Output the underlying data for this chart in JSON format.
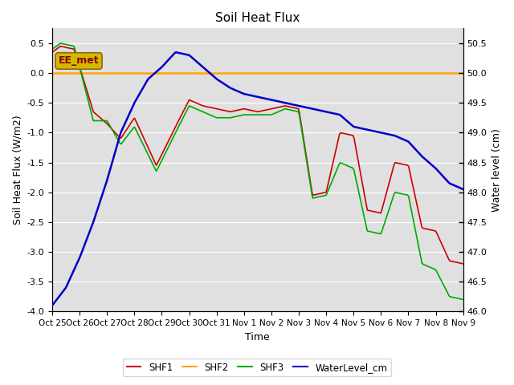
{
  "title": "Soil Heat Flux",
  "ylabel_left": "Soil Heat Flux (W/m2)",
  "ylabel_right": "Water level (cm)",
  "xlabel": "Time",
  "ylim_left": [
    -4.0,
    0.75
  ],
  "ylim_right": [
    46.0,
    50.75
  ],
  "background_color": "#ffffff",
  "plot_bg_color": "#e0e0e0",
  "annotation_text": "EE_met",
  "annotation_bg_color": "#d4b800",
  "annotation_text_color": "#8b0000",
  "annotation_edge_color": "#8b6914",
  "x_ticks_labels": [
    "Oct 25",
    "Oct 26",
    "Oct 27",
    "Oct 28",
    "Oct 29",
    "Oct 30",
    "Oct 31",
    "Nov 1",
    "Nov 2",
    "Nov 3",
    "Nov 4",
    "Nov 5",
    "Nov 6",
    "Nov 7",
    "Nov 8",
    "Nov 9"
  ],
  "colors": {
    "SHF1": "#cc0000",
    "SHF2": "#ffa500",
    "SHF3": "#00aa00",
    "WaterLevel": "#0000cc"
  },
  "shf2_value": 0.0,
  "left_yticks": [
    0.5,
    0.0,
    -0.5,
    -1.0,
    -1.5,
    -2.0,
    -2.5,
    -3.0,
    -3.5,
    -4.0
  ],
  "right_yticks": [
    50.5,
    50.0,
    49.5,
    49.0,
    48.5,
    48.0,
    47.5,
    47.0,
    46.5,
    46.0
  ],
  "n_days": 15
}
